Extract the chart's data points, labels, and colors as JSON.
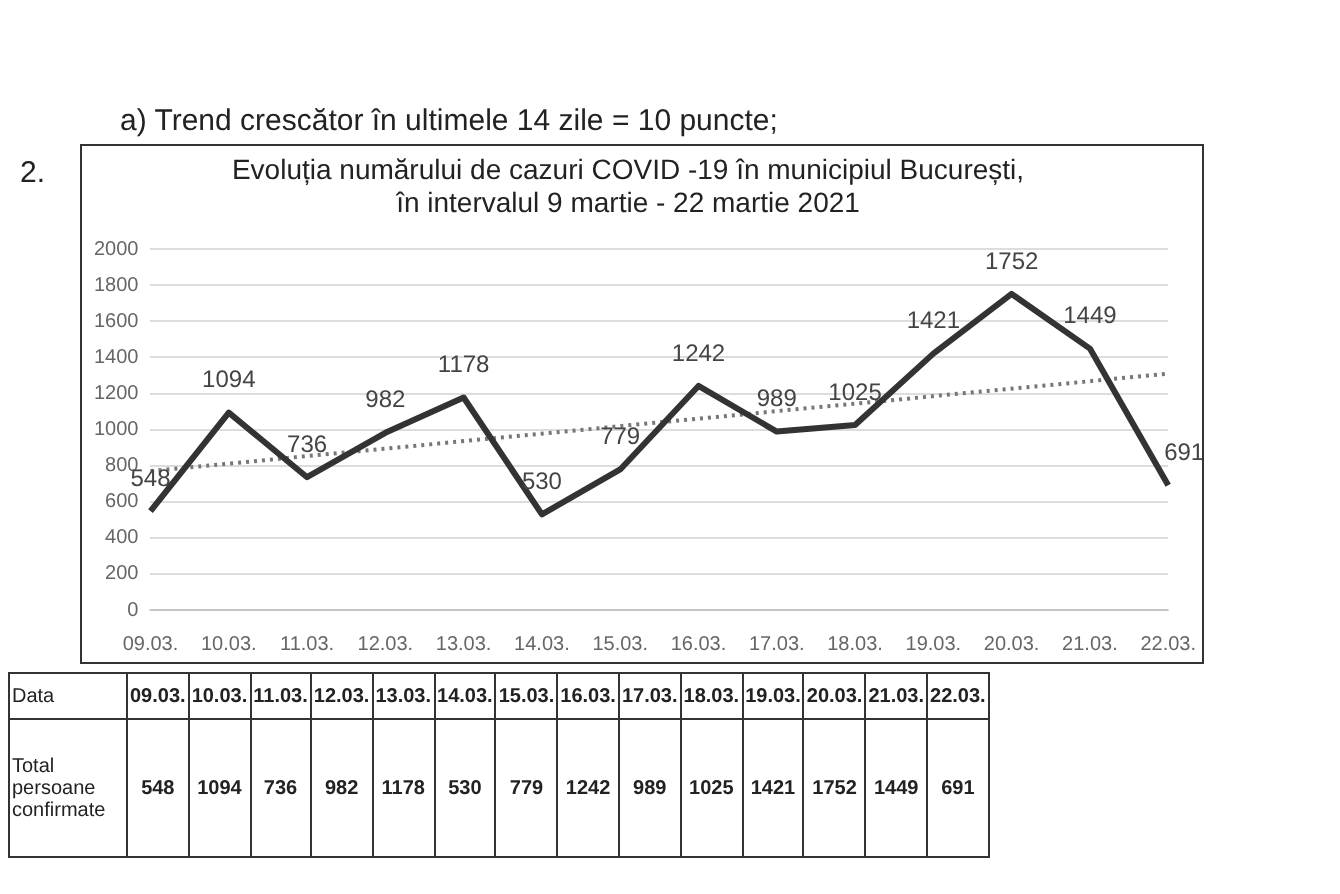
{
  "chart_data": {
    "type": "line",
    "title": "Evoluția numărului de cazuri COVID -19 în municipiul București,\nîn intervalul 9 martie - 22 martie 2021",
    "categories": [
      "09.03.",
      "10.03.",
      "11.03.",
      "12.03.",
      "13.03.",
      "14.03.",
      "15.03.",
      "16.03.",
      "17.03.",
      "18.03.",
      "19.03.",
      "20.03.",
      "21.03.",
      "22.03."
    ],
    "series": [
      {
        "color": "#333333",
        "values": [
          548,
          1094,
          736,
          982,
          1178,
          530,
          779,
          1242,
          989,
          1025,
          1421,
          1752,
          1449,
          691
        ],
        "value_labels": [
          "548",
          "1094",
          "736",
          "982",
          "1178",
          "530",
          "779",
          "1242",
          "989",
          "1025",
          "1421",
          "1752",
          "1449",
          "691"
        ]
      },
      {
        "type": "line",
        "color": "#777777",
        "line_style": "dotted",
        "x": [
          "09.03.",
          "22.03."
        ],
        "values": [
          770,
          1310
        ]
      }
    ],
    "ylim": [
      0,
      2000
    ],
    "yticks": [
      0,
      200,
      400,
      600,
      800,
      1000,
      1200,
      1400,
      1600,
      1800,
      2000
    ],
    "grid": "y",
    "legend": false,
    "marker": "none",
    "annotations": [
      "a) Trend crescător în ultimele 14 zile = 10 puncte;",
      "2.",
      "Data",
      "Total persoane confirmate",
      "548",
      "1094",
      "736",
      "982",
      "1178",
      "530",
      "779",
      "1242",
      "989",
      "1025",
      "1421",
      "1752",
      "1449",
      "691"
    ]
  }
}
